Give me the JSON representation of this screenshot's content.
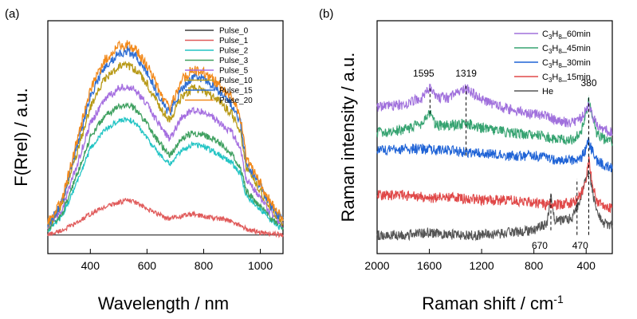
{
  "chart_data": [
    {
      "panel_label": "(a)",
      "type": "line",
      "xlabel": "Wavelength / nm",
      "ylabel": "F(Rrel) / a.u.",
      "xlim": [
        250,
        1080
      ],
      "ylim": [
        0,
        1
      ],
      "xticks": [
        400,
        600,
        800,
        1000
      ],
      "yticks_shown": false,
      "legend": {
        "placement": "top-right"
      },
      "series": [
        {
          "name": "Pulse_0",
          "color": "#3f3f3f",
          "x": [
            250,
            1080
          ],
          "y": [
            0.08,
            0.08
          ]
        },
        {
          "name": "Pulse_1",
          "color": "#e05a5a",
          "x": [
            250,
            300,
            350,
            400,
            450,
            500,
            530,
            560,
            600,
            640,
            680,
            720,
            760,
            800,
            850,
            900,
            930,
            960,
            1000,
            1040,
            1080
          ],
          "y": [
            0.08,
            0.1,
            0.13,
            0.17,
            0.2,
            0.22,
            0.23,
            0.22,
            0.19,
            0.17,
            0.15,
            0.16,
            0.17,
            0.16,
            0.15,
            0.14,
            0.12,
            0.1,
            0.09,
            0.085,
            0.08
          ]
        },
        {
          "name": "Pulse_2",
          "color": "#22c4c4",
          "x": [
            250,
            300,
            350,
            400,
            450,
            500,
            530,
            560,
            600,
            640,
            680,
            720,
            760,
            800,
            850,
            900,
            930,
            950,
            1000,
            1040,
            1080
          ],
          "y": [
            0.1,
            0.16,
            0.3,
            0.45,
            0.53,
            0.57,
            0.58,
            0.56,
            0.5,
            0.43,
            0.38,
            0.44,
            0.47,
            0.46,
            0.43,
            0.39,
            0.34,
            0.25,
            0.19,
            0.14,
            0.1
          ]
        },
        {
          "name": "Pulse_3",
          "color": "#3fa060",
          "x": [
            250,
            300,
            350,
            400,
            450,
            500,
            530,
            560,
            600,
            640,
            680,
            720,
            760,
            800,
            850,
            900,
            930,
            950,
            1000,
            1040,
            1080
          ],
          "y": [
            0.1,
            0.17,
            0.33,
            0.5,
            0.59,
            0.63,
            0.64,
            0.62,
            0.56,
            0.48,
            0.42,
            0.49,
            0.52,
            0.51,
            0.48,
            0.43,
            0.37,
            0.27,
            0.2,
            0.15,
            0.11
          ]
        },
        {
          "name": "Pulse_5",
          "color": "#a56fe0",
          "x": [
            250,
            300,
            350,
            400,
            450,
            500,
            530,
            560,
            600,
            640,
            680,
            720,
            760,
            800,
            850,
            900,
            930,
            950,
            1000,
            1040,
            1080
          ],
          "y": [
            0.11,
            0.19,
            0.37,
            0.56,
            0.66,
            0.71,
            0.72,
            0.7,
            0.64,
            0.56,
            0.49,
            0.58,
            0.62,
            0.61,
            0.57,
            0.52,
            0.45,
            0.32,
            0.24,
            0.17,
            0.12
          ]
        },
        {
          "name": "Pulse_10",
          "color": "#b89a18",
          "x": [
            250,
            300,
            350,
            400,
            450,
            500,
            530,
            560,
            600,
            640,
            680,
            720,
            760,
            800,
            850,
            900,
            930,
            950,
            1000,
            1040,
            1080
          ],
          "y": [
            0.12,
            0.21,
            0.42,
            0.63,
            0.75,
            0.8,
            0.81,
            0.79,
            0.73,
            0.64,
            0.57,
            0.67,
            0.71,
            0.7,
            0.66,
            0.6,
            0.52,
            0.37,
            0.27,
            0.19,
            0.13
          ]
        },
        {
          "name": "Pulse_15",
          "color": "#2f6fd4",
          "x": [
            250,
            300,
            350,
            400,
            450,
            500,
            530,
            560,
            600,
            640,
            680,
            720,
            760,
            800,
            850,
            900,
            930,
            950,
            1000,
            1040,
            1080
          ],
          "y": [
            0.12,
            0.22,
            0.45,
            0.68,
            0.8,
            0.86,
            0.87,
            0.85,
            0.78,
            0.68,
            0.6,
            0.71,
            0.76,
            0.75,
            0.7,
            0.64,
            0.56,
            0.39,
            0.29,
            0.2,
            0.14
          ]
        },
        {
          "name": "Pulse_20",
          "color": "#f28a1c",
          "x": [
            250,
            300,
            350,
            400,
            450,
            500,
            530,
            560,
            600,
            640,
            680,
            720,
            760,
            800,
            850,
            900,
            930,
            950,
            1000,
            1040,
            1080
          ],
          "y": [
            0.13,
            0.23,
            0.47,
            0.7,
            0.83,
            0.89,
            0.9,
            0.88,
            0.81,
            0.71,
            0.62,
            0.74,
            0.79,
            0.78,
            0.73,
            0.67,
            0.58,
            0.41,
            0.3,
            0.21,
            0.15
          ]
        }
      ]
    },
    {
      "panel_label": "(b)",
      "type": "line",
      "xlabel": "Raman shift / cm",
      "xlabel_superscript": "-1",
      "ylabel": "Raman intensity / a.u.",
      "xlim": [
        2000,
        200
      ],
      "ylim": [
        0,
        1
      ],
      "xticks": [
        2000,
        1600,
        1200,
        800,
        400
      ],
      "yticks_shown": false,
      "legend": {
        "placement": "top-right"
      },
      "annotations": [
        {
          "text": "1595",
          "x": 1595
        },
        {
          "text": "1319",
          "x": 1319
        },
        {
          "text": "380",
          "x": 380
        },
        {
          "text": "670",
          "x": 670
        },
        {
          "text": "470",
          "x": 470
        }
      ],
      "series": [
        {
          "name": "He",
          "name_parts": [
            "He",
            "",
            "",
            ""
          ],
          "color": "#555555",
          "x": [
            2000,
            1800,
            1600,
            1400,
            1200,
            1000,
            800,
            700,
            670,
            640,
            560,
            500,
            470,
            440,
            400,
            380,
            360,
            320,
            260,
            200
          ],
          "y": [
            0.08,
            0.08,
            0.09,
            0.08,
            0.08,
            0.09,
            0.1,
            0.13,
            0.25,
            0.14,
            0.14,
            0.16,
            0.2,
            0.25,
            0.32,
            0.36,
            0.3,
            0.18,
            0.13,
            0.12
          ]
        },
        {
          "name": "C3H8_15min",
          "name_parts": [
            "C",
            "3",
            "H",
            "8",
            "_15min"
          ],
          "color": "#e04848",
          "x": [
            2000,
            1800,
            1600,
            1400,
            1200,
            1000,
            800,
            700,
            600,
            500,
            440,
            400,
            380,
            360,
            320,
            260,
            200
          ],
          "y": [
            0.25,
            0.25,
            0.24,
            0.24,
            0.23,
            0.23,
            0.22,
            0.21,
            0.21,
            0.22,
            0.25,
            0.33,
            0.4,
            0.33,
            0.22,
            0.2,
            0.2
          ]
        },
        {
          "name": "C3H8_30min",
          "name_parts": [
            "C",
            "3",
            "H",
            "8",
            "_30min"
          ],
          "color": "#1f63d6",
          "x": [
            2000,
            1800,
            1600,
            1400,
            1200,
            1000,
            800,
            700,
            600,
            500,
            440,
            400,
            380,
            360,
            320,
            260,
            200
          ],
          "y": [
            0.44,
            0.45,
            0.45,
            0.44,
            0.43,
            0.42,
            0.42,
            0.41,
            0.4,
            0.4,
            0.41,
            0.45,
            0.48,
            0.45,
            0.4,
            0.38,
            0.37
          ]
        },
        {
          "name": "C3H8_45min",
          "name_parts": [
            "C",
            "3",
            "H",
            "8",
            "_45min"
          ],
          "color": "#36a371",
          "x": [
            2000,
            1800,
            1650,
            1595,
            1550,
            1450,
            1319,
            1200,
            1000,
            800,
            700,
            600,
            500,
            440,
            400,
            380,
            360,
            320,
            260,
            200
          ],
          "y": [
            0.52,
            0.53,
            0.56,
            0.6,
            0.55,
            0.55,
            0.56,
            0.54,
            0.52,
            0.51,
            0.5,
            0.49,
            0.49,
            0.52,
            0.6,
            0.66,
            0.6,
            0.52,
            0.49,
            0.48
          ]
        },
        {
          "name": "C3H8_60min",
          "name_parts": [
            "C",
            "3",
            "H",
            "8",
            "_60min"
          ],
          "color": "#a070dc",
          "x": [
            2000,
            1800,
            1650,
            1595,
            1550,
            1450,
            1319,
            1200,
            1000,
            800,
            700,
            600,
            500,
            440,
            400,
            380,
            360,
            320,
            260,
            200
          ],
          "y": [
            0.63,
            0.64,
            0.67,
            0.71,
            0.67,
            0.67,
            0.71,
            0.66,
            0.62,
            0.6,
            0.59,
            0.57,
            0.56,
            0.58,
            0.62,
            0.64,
            0.6,
            0.56,
            0.53,
            0.52
          ]
        }
      ]
    }
  ]
}
